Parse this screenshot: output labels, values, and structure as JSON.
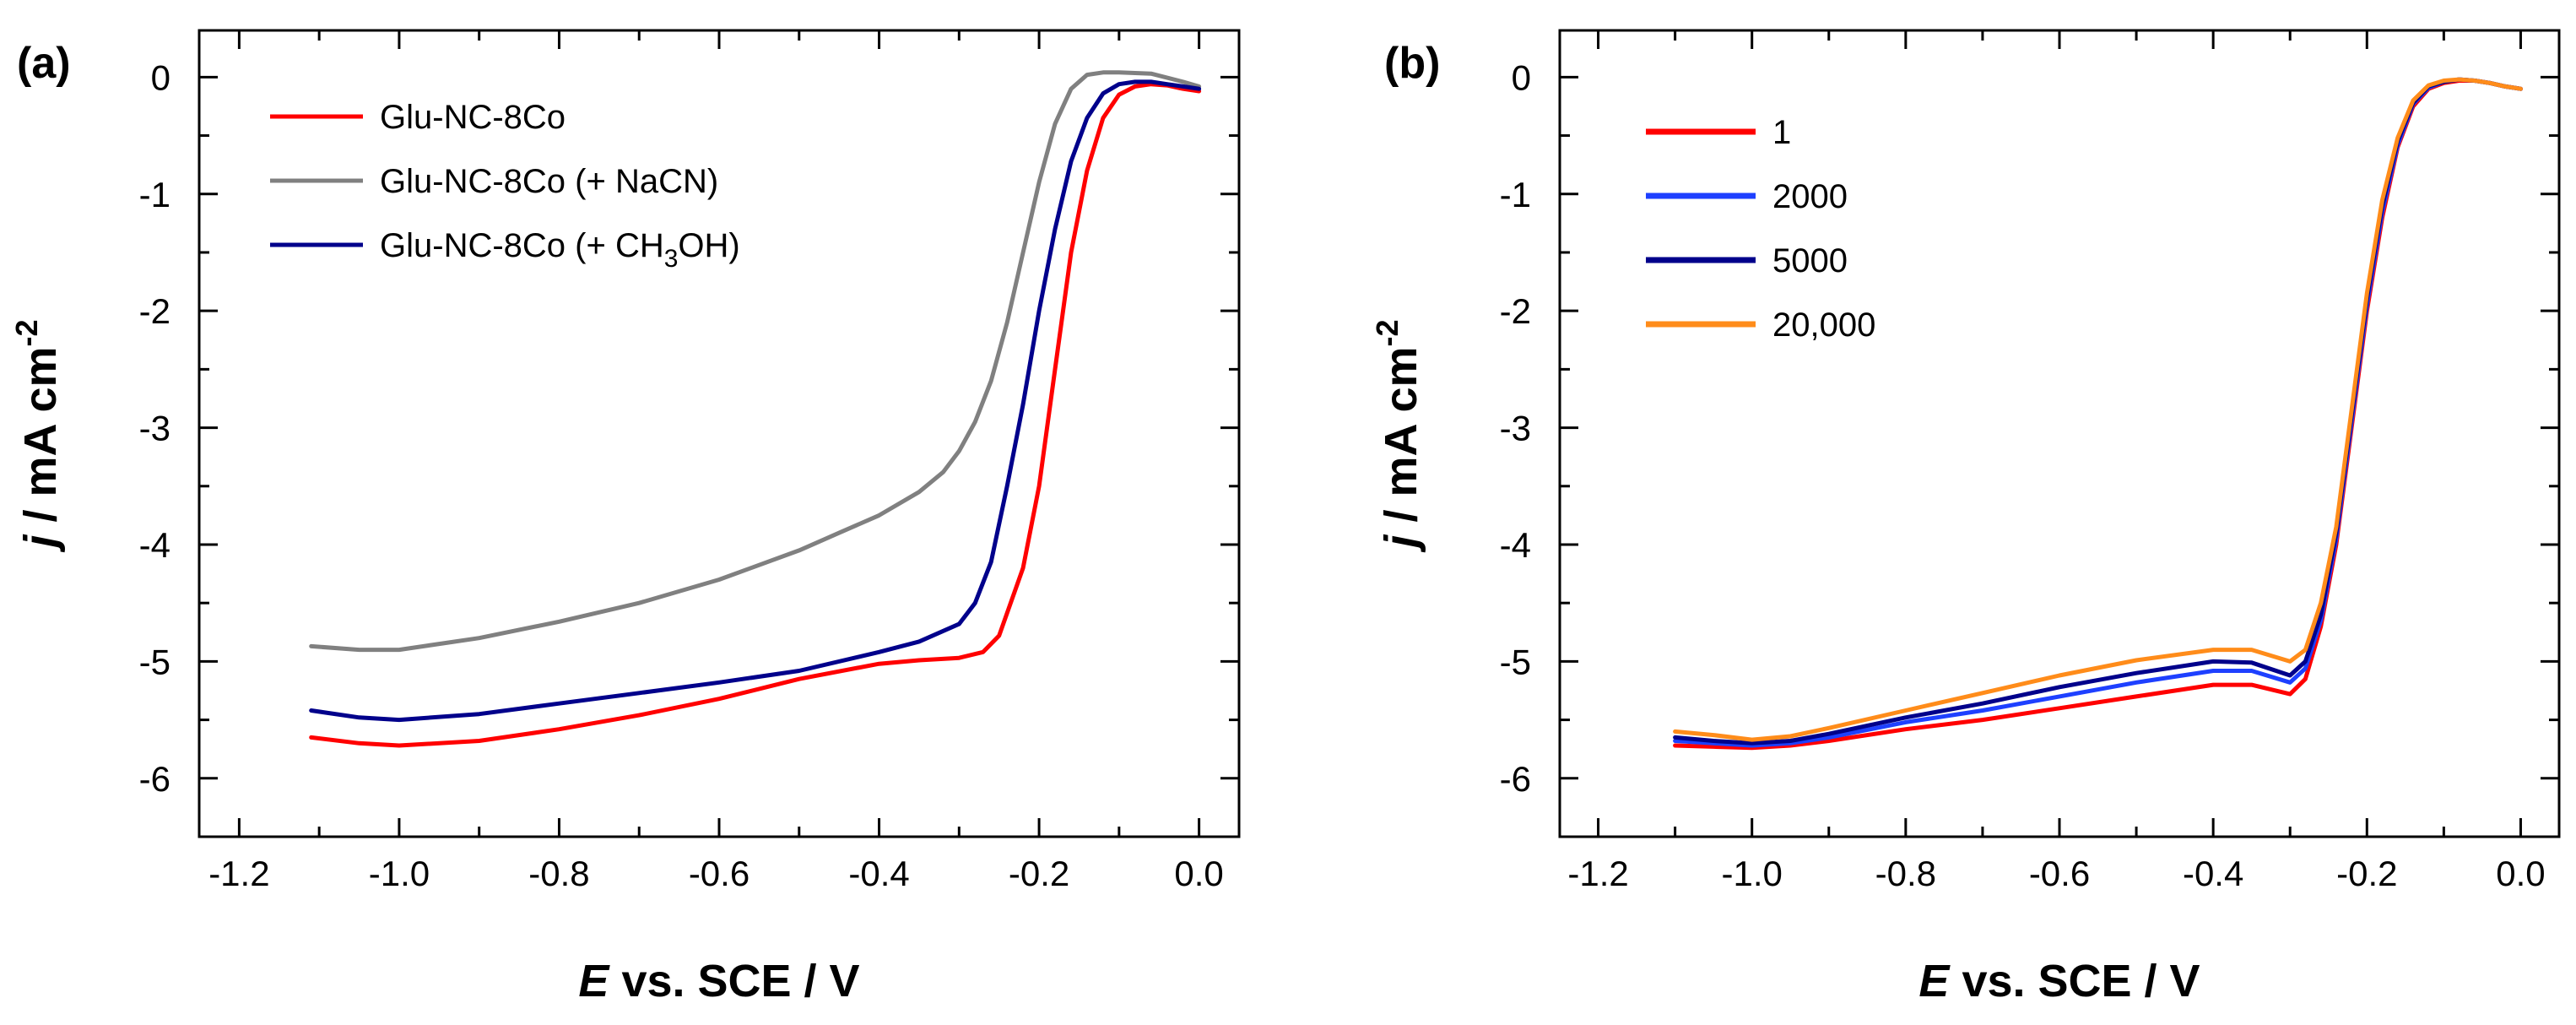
{
  "chart_data": [
    {
      "type": "line",
      "panel_label": "(a)",
      "xlabel_symbol": "E",
      "xlabel_rest": " vs. SCE / V",
      "ylabel_symbol": "j",
      "ylabel_rest": " / mA cm",
      "ylabel_exp": "-2",
      "xlim": [
        -1.25,
        0.05
      ],
      "ylim": [
        -6.5,
        0.4
      ],
      "xticks": [
        -1.2,
        -1.0,
        -0.8,
        -0.6,
        -0.4,
        -0.2,
        0.0
      ],
      "xtick_labels": [
        "-1.2",
        "-1.0",
        "-0.8",
        "-0.6",
        "-0.4",
        "-0.2",
        "0.0"
      ],
      "yticks": [
        0,
        -1,
        -2,
        -3,
        -4,
        -5,
        -6
      ],
      "ytick_labels": [
        "0",
        "-1",
        "-2",
        "-3",
        "-4",
        "-5",
        "-6"
      ],
      "legend_position": "top-left",
      "series": [
        {
          "name": "Glu-NC-8Co",
          "legend_parts": [
            "Glu-NC-8Co"
          ],
          "color": "#ff0000",
          "x": [
            -1.11,
            -1.05,
            -1.0,
            -0.9,
            -0.8,
            -0.7,
            -0.6,
            -0.5,
            -0.4,
            -0.35,
            -0.3,
            -0.27,
            -0.25,
            -0.22,
            -0.2,
            -0.18,
            -0.16,
            -0.14,
            -0.12,
            -0.1,
            -0.08,
            -0.06,
            -0.04,
            -0.02,
            0.0
          ],
          "y": [
            -5.65,
            -5.7,
            -5.72,
            -5.68,
            -5.58,
            -5.46,
            -5.32,
            -5.15,
            -5.02,
            -4.99,
            -4.97,
            -4.92,
            -4.78,
            -4.2,
            -3.5,
            -2.5,
            -1.5,
            -0.8,
            -0.35,
            -0.15,
            -0.08,
            -0.06,
            -0.07,
            -0.1,
            -0.12
          ]
        },
        {
          "name": "Glu-NC-8Co (+ NaCN)",
          "legend_parts": [
            "Glu-NC-8Co (+ NaCN)"
          ],
          "color": "#808080",
          "x": [
            -1.11,
            -1.05,
            -1.0,
            -0.9,
            -0.8,
            -0.7,
            -0.6,
            -0.5,
            -0.45,
            -0.4,
            -0.35,
            -0.32,
            -0.3,
            -0.28,
            -0.26,
            -0.24,
            -0.22,
            -0.2,
            -0.18,
            -0.16,
            -0.14,
            -0.12,
            -0.1,
            -0.06,
            -0.02,
            0.0
          ],
          "y": [
            -4.87,
            -4.9,
            -4.9,
            -4.8,
            -4.66,
            -4.5,
            -4.3,
            -4.05,
            -3.9,
            -3.75,
            -3.55,
            -3.38,
            -3.2,
            -2.95,
            -2.6,
            -2.1,
            -1.5,
            -0.9,
            -0.4,
            -0.1,
            0.02,
            0.04,
            0.04,
            0.03,
            -0.04,
            -0.08
          ]
        },
        {
          "name": "Glu-NC-8Co (+ CH3OH)",
          "legend_parts": [
            "Glu-NC-8Co (+ CH",
            "3",
            "OH)"
          ],
          "color": "#00008b",
          "x": [
            -1.11,
            -1.05,
            -1.0,
            -0.9,
            -0.8,
            -0.7,
            -0.6,
            -0.5,
            -0.4,
            -0.35,
            -0.3,
            -0.28,
            -0.26,
            -0.24,
            -0.22,
            -0.2,
            -0.18,
            -0.16,
            -0.14,
            -0.12,
            -0.1,
            -0.08,
            -0.06,
            -0.04,
            -0.02,
            0.0
          ],
          "y": [
            -5.42,
            -5.48,
            -5.5,
            -5.45,
            -5.36,
            -5.27,
            -5.18,
            -5.08,
            -4.92,
            -4.83,
            -4.68,
            -4.5,
            -4.15,
            -3.5,
            -2.8,
            -2.0,
            -1.3,
            -0.72,
            -0.35,
            -0.14,
            -0.06,
            -0.04,
            -0.04,
            -0.06,
            -0.08,
            -0.1
          ]
        }
      ]
    },
    {
      "type": "line",
      "panel_label": "(b)",
      "xlabel_symbol": "E",
      "xlabel_rest": " vs. SCE / V",
      "ylabel_symbol": "j",
      "ylabel_rest": " / mA cm",
      "ylabel_exp": "-2",
      "xlim": [
        -1.25,
        0.05
      ],
      "ylim": [
        -6.5,
        0.4
      ],
      "xticks": [
        -1.2,
        -1.0,
        -0.8,
        -0.6,
        -0.4,
        -0.2,
        0.0
      ],
      "xtick_labels": [
        "-1.2",
        "-1.0",
        "-0.8",
        "-0.6",
        "-0.4",
        "-0.2",
        "0.0"
      ],
      "yticks": [
        0,
        -1,
        -2,
        -3,
        -4,
        -5,
        -6
      ],
      "ytick_labels": [
        "0",
        "-1",
        "-2",
        "-3",
        "-4",
        "-5",
        "-6"
      ],
      "legend_position": "top-left",
      "series": [
        {
          "name": "1",
          "legend_parts": [
            "1"
          ],
          "color": "#ff0000",
          "x": [
            -1.1,
            -1.05,
            -1.0,
            -0.95,
            -0.9,
            -0.8,
            -0.7,
            -0.6,
            -0.5,
            -0.4,
            -0.35,
            -0.3,
            -0.28,
            -0.26,
            -0.24,
            -0.22,
            -0.2,
            -0.18,
            -0.16,
            -0.14,
            -0.12,
            -0.1,
            -0.08,
            -0.06,
            -0.04,
            -0.02,
            0.0
          ],
          "y": [
            -5.72,
            -5.73,
            -5.74,
            -5.72,
            -5.68,
            -5.58,
            -5.5,
            -5.4,
            -5.3,
            -5.2,
            -5.2,
            -5.28,
            -5.15,
            -4.7,
            -4.0,
            -3.0,
            -2.0,
            -1.2,
            -0.6,
            -0.25,
            -0.1,
            -0.05,
            -0.03,
            -0.03,
            -0.05,
            -0.08,
            -0.1
          ]
        },
        {
          "name": "2000",
          "legend_parts": [
            "2000"
          ],
          "color": "#1e40ff",
          "x": [
            -1.1,
            -1.05,
            -1.0,
            -0.95,
            -0.9,
            -0.8,
            -0.7,
            -0.6,
            -0.5,
            -0.4,
            -0.35,
            -0.3,
            -0.28,
            -0.26,
            -0.24,
            -0.22,
            -0.2,
            -0.18,
            -0.16,
            -0.14,
            -0.12,
            -0.1,
            -0.08,
            -0.06,
            -0.04,
            -0.02,
            0.0
          ],
          "y": [
            -5.68,
            -5.7,
            -5.72,
            -5.7,
            -5.65,
            -5.52,
            -5.42,
            -5.3,
            -5.18,
            -5.08,
            -5.08,
            -5.18,
            -5.06,
            -4.65,
            -3.95,
            -2.95,
            -1.95,
            -1.15,
            -0.58,
            -0.23,
            -0.09,
            -0.04,
            -0.02,
            -0.03,
            -0.05,
            -0.08,
            -0.1
          ]
        },
        {
          "name": "5000",
          "legend_parts": [
            "5000"
          ],
          "color": "#00008b",
          "x": [
            -1.1,
            -1.05,
            -1.0,
            -0.95,
            -0.9,
            -0.8,
            -0.7,
            -0.6,
            -0.5,
            -0.4,
            -0.35,
            -0.3,
            -0.28,
            -0.26,
            -0.24,
            -0.22,
            -0.2,
            -0.18,
            -0.16,
            -0.14,
            -0.12,
            -0.1,
            -0.08,
            -0.06,
            -0.04,
            -0.02,
            0.0
          ],
          "y": [
            -5.65,
            -5.68,
            -5.7,
            -5.68,
            -5.62,
            -5.48,
            -5.36,
            -5.22,
            -5.1,
            -5.0,
            -5.01,
            -5.12,
            -5.0,
            -4.6,
            -3.9,
            -2.9,
            -1.9,
            -1.1,
            -0.55,
            -0.22,
            -0.08,
            -0.04,
            -0.02,
            -0.03,
            -0.05,
            -0.08,
            -0.1
          ]
        },
        {
          "name": "20,000",
          "legend_parts": [
            "20,000"
          ],
          "color": "#ff8c1a",
          "x": [
            -1.1,
            -1.05,
            -1.0,
            -0.95,
            -0.9,
            -0.8,
            -0.7,
            -0.6,
            -0.5,
            -0.4,
            -0.35,
            -0.3,
            -0.28,
            -0.26,
            -0.24,
            -0.22,
            -0.2,
            -0.18,
            -0.16,
            -0.14,
            -0.12,
            -0.1,
            -0.08,
            -0.06,
            -0.04,
            -0.02,
            0.0
          ],
          "y": [
            -5.6,
            -5.63,
            -5.67,
            -5.64,
            -5.57,
            -5.42,
            -5.27,
            -5.12,
            -4.99,
            -4.9,
            -4.9,
            -5.0,
            -4.9,
            -4.5,
            -3.85,
            -2.85,
            -1.85,
            -1.05,
            -0.52,
            -0.2,
            -0.07,
            -0.03,
            -0.02,
            -0.03,
            -0.05,
            -0.08,
            -0.1
          ]
        }
      ]
    }
  ]
}
